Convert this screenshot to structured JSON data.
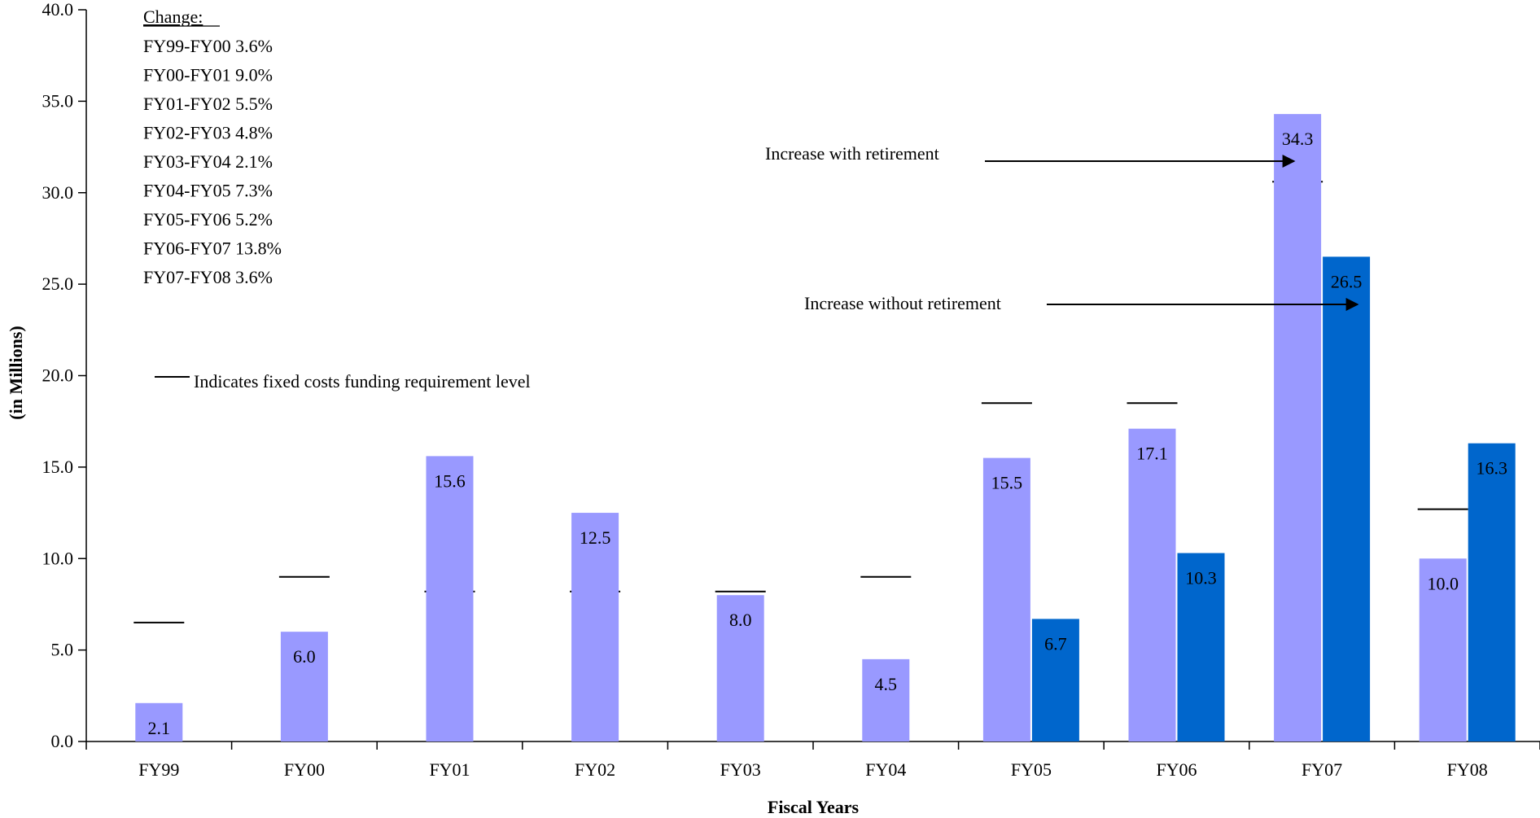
{
  "chart_data": {
    "type": "bar",
    "xlabel": "Fiscal Years",
    "ylabel": "(in Millions)",
    "ylim": [
      0,
      40
    ],
    "yticks": [
      "0.0",
      "5.0",
      "10.0",
      "15.0",
      "20.0",
      "25.0",
      "30.0",
      "35.0",
      "40.0"
    ],
    "categories": [
      "FY99",
      "FY00",
      "FY01",
      "FY02",
      "FY03",
      "FY04",
      "FY05",
      "FY06",
      "FY07",
      "FY08"
    ],
    "series": [
      {
        "color": "#9999ff",
        "values": [
          2.1,
          6.0,
          15.6,
          12.5,
          8.0,
          4.5,
          15.5,
          17.1,
          34.3,
          10.0
        ],
        "labels": [
          "2.1",
          "6.0",
          "15.6",
          "12.5",
          "8.0",
          "4.5",
          "15.5",
          "17.1",
          "34.3",
          "10.0"
        ]
      },
      {
        "color": "#0066cc",
        "values": [
          null,
          null,
          null,
          null,
          null,
          null,
          6.7,
          10.3,
          26.5,
          16.3
        ],
        "labels": [
          null,
          null,
          null,
          null,
          null,
          null,
          "6.7",
          "10.3",
          "26.5",
          "16.3"
        ]
      }
    ],
    "fixed_cost_levels": [
      6.5,
      9.0,
      8.2,
      8.2,
      8.2,
      9.0,
      18.5,
      18.5,
      30.6,
      12.7
    ],
    "grid": false,
    "change_box": {
      "title": "Change:",
      "lines": [
        "FY99-FY00 3.6%",
        "FY00-FY01 9.0%",
        "FY01-FY02 5.5%",
        "FY02-FY03 4.8%",
        "FY03-FY04 2.1%",
        "FY04-FY05 7.3%",
        "FY05-FY06 5.2%",
        "FY06-FY07 13.8%",
        "FY07-FY08 3.6%"
      ]
    },
    "legend_note": "Indicates fixed costs funding requirement level",
    "annotations": {
      "with_retirement": "Increase with retirement",
      "without_retirement": "Increase without retirement"
    }
  }
}
